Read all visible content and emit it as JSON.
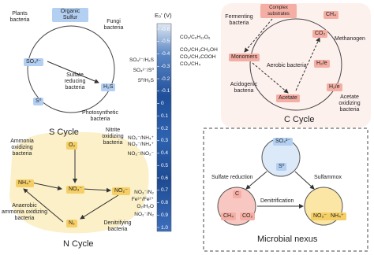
{
  "s_cycle": {
    "title": "S Cycle",
    "items": [
      "Plants bacteria",
      "Organic Sulfur",
      "Fungi bacteria",
      "SO₄²⁻",
      "Sulfate reducing bacteria",
      "H₂S",
      "S⁰",
      "Photosynthetic bacteria"
    ]
  },
  "redox_scale": {
    "axis_label": "E₀' (V)",
    "ticks": [
      "-0.6",
      "-0.5",
      "-0.4",
      "-0.3",
      "-0.2",
      "-0.1",
      "0",
      "0.1",
      "0.2",
      "0.3",
      "0.4",
      "0.5",
      "0.6",
      "0.7",
      "0.8",
      "0.9",
      "1.0"
    ],
    "couples": [
      "CO₂/C₆H₁₂O₆",
      "CO₂/CH₃CH₂OH",
      "CO₂/CH₃COOH",
      "CO₂/CH₄",
      "SO₄²⁻/H₂S",
      "SO₄²⁻/S⁰",
      "S⁰/H₂S",
      "NO₂⁻/NH₄⁺",
      "NO₃⁻/NH₄⁺",
      "NO₃⁻/NO₂⁻",
      "NO₃⁻/N₂",
      "Fe³⁺/Fe²⁺",
      "O₂/H₂O",
      "NO₂⁻/N₂"
    ]
  },
  "c_cycle": {
    "title": "C Cycle",
    "items": [
      "Fermenting bacteria",
      "Complex substrates",
      "CH₄",
      "CO₂",
      "Methanogen",
      "Monomers",
      "Aerobic bacteria",
      "H₂/e",
      "H₂/e",
      "Acidogenic bacteria",
      "Acetate",
      "Acetate oxidizing bacteria"
    ]
  },
  "n_cycle": {
    "title": "N Cycle",
    "items": [
      "Ammonia oxidizing bacteria",
      "O₂",
      "Nitrite oxidizing bacteria",
      "NH₄⁺",
      "NO₃⁻",
      "NO₂⁻",
      "N₂",
      "Anaerobic ammonia oxidizing bacteria",
      "Denitrifying bacteria"
    ]
  },
  "microbial_nexus": {
    "title": "Microbial nexus",
    "items": [
      "SO₄²⁻",
      "S⁰",
      "Sulfate reduction",
      "Sulfammox",
      "C",
      "CH₄",
      "CO₂",
      "Denitrification",
      "NO₃⁻",
      "NH₄⁺"
    ]
  }
}
